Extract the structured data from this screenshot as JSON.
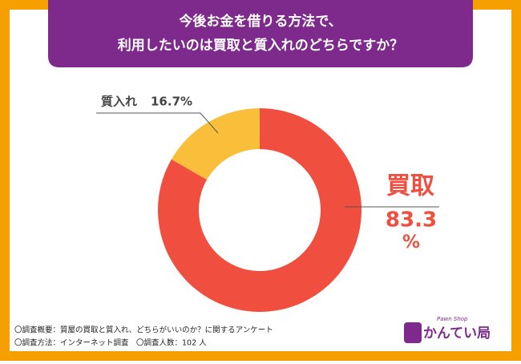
{
  "chart_data": {
    "type": "donut",
    "title": [
      "今後お金を借りる方法で、",
      "利用したいのは買取と質入れのどちらですか？"
    ],
    "categories": [
      "買取",
      "質入れ"
    ],
    "values": [
      83.3,
      16.7
    ],
    "value_labels": [
      "83.3",
      "16.7%"
    ],
    "percent_sign": "%",
    "colors": [
      "#f04e3e",
      "#f9bf3b"
    ]
  },
  "footer": [
    "〇調査概要：質屋の買取と質入れ、どちらがいいのか？に関するアンケート",
    "〇調査方法：インターネット調査　〇調査人数：102 人"
  ],
  "logo": {
    "tagline": "Pawn Shop",
    "name": "かんてい局"
  }
}
